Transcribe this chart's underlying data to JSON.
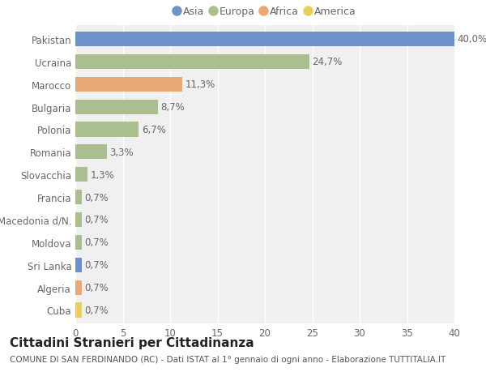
{
  "categories": [
    "Pakistan",
    "Ucraina",
    "Marocco",
    "Bulgaria",
    "Polonia",
    "Romania",
    "Slovacchia",
    "Francia",
    "Macedonia d/N.",
    "Moldova",
    "Sri Lanka",
    "Algeria",
    "Cuba"
  ],
  "values": [
    40.0,
    24.7,
    11.3,
    8.7,
    6.7,
    3.3,
    1.3,
    0.7,
    0.7,
    0.7,
    0.7,
    0.7,
    0.7
  ],
  "labels": [
    "40,0%",
    "24,7%",
    "11,3%",
    "8,7%",
    "6,7%",
    "3,3%",
    "1,3%",
    "0,7%",
    "0,7%",
    "0,7%",
    "0,7%",
    "0,7%",
    "0,7%"
  ],
  "continents": [
    "Asia",
    "Europa",
    "Africa",
    "Europa",
    "Europa",
    "Europa",
    "Europa",
    "Europa",
    "Europa",
    "Europa",
    "Asia",
    "Africa",
    "America"
  ],
  "continent_colors": {
    "Asia": "#7090c8",
    "Europa": "#aabf90",
    "Africa": "#e8a878",
    "America": "#e8d060"
  },
  "legend_order": [
    "Asia",
    "Europa",
    "Africa",
    "America"
  ],
  "title": "Cittadini Stranieri per Cittadinanza",
  "subtitle": "COMUNE DI SAN FERDINANDO (RC) - Dati ISTAT al 1° gennaio di ogni anno - Elaborazione TUTTITALIA.IT",
  "xlim": [
    0,
    40
  ],
  "xticks": [
    0,
    5,
    10,
    15,
    20,
    25,
    30,
    35,
    40
  ],
  "background_color": "#ffffff",
  "plot_bg_color": "#f0f0f0",
  "grid_color": "#ffffff",
  "title_fontsize": 11,
  "subtitle_fontsize": 7.5,
  "label_fontsize": 8.5,
  "tick_fontsize": 8.5,
  "legend_fontsize": 9,
  "bar_height": 0.65
}
